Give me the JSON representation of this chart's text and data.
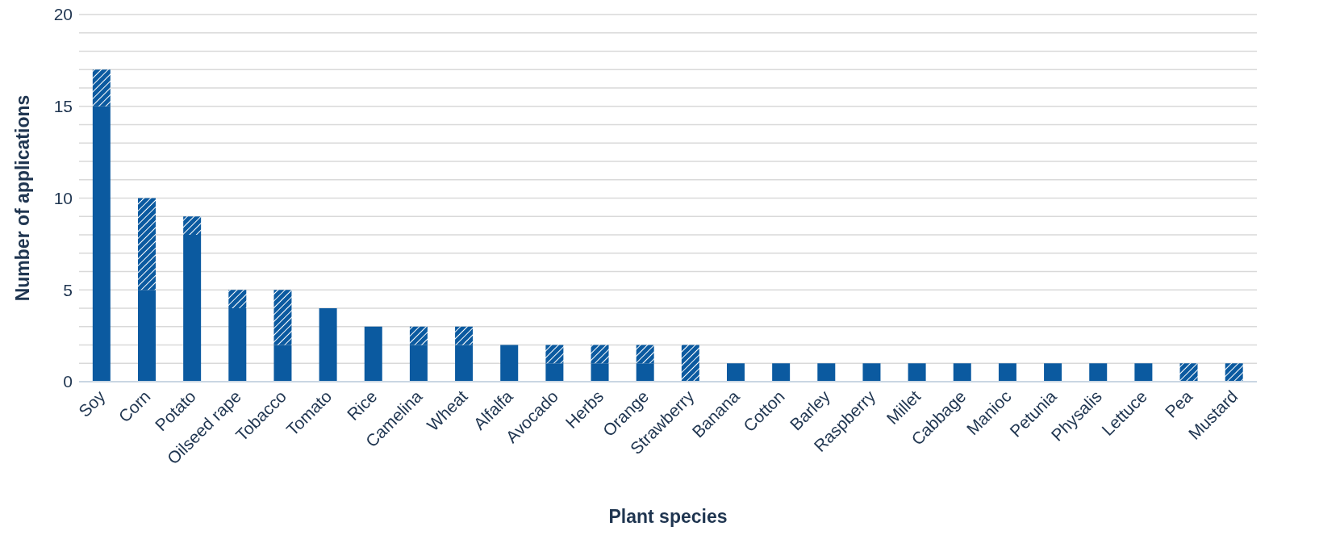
{
  "chart_data": {
    "type": "bar",
    "stacked": true,
    "xlabel": "Plant species",
    "ylabel": "Number of applications",
    "categories": [
      "Soy",
      "Corn",
      "Potato",
      "Oilseed rape",
      "Tobacco",
      "Tomato",
      "Rice",
      "Camelina",
      "Wheat",
      "Alfalfa",
      "Avocado",
      "Herbs",
      "Orange",
      "Strawberry",
      "Banana",
      "Cotton",
      "Barley",
      "Raspberry",
      "Millet",
      "Cabbage",
      "Manioc",
      "Petunia",
      "Physalis",
      "Lettuce",
      "Pea",
      "Mustard"
    ],
    "series": [
      {
        "color": "#0b5aa0",
        "values": [
          15,
          5,
          8,
          4,
          2,
          4,
          3,
          2,
          2,
          2,
          1,
          1,
          1,
          0,
          1,
          1,
          1,
          1,
          1,
          1,
          1,
          1,
          1,
          1,
          0,
          0
        ]
      },
      {
        "color": "#0b5aa0",
        "values": [
          2,
          5,
          1,
          1,
          3,
          0,
          0,
          1,
          1,
          0,
          1,
          1,
          1,
          2,
          0,
          0,
          0,
          0,
          0,
          0,
          0,
          0,
          0,
          0,
          1,
          1
        ]
      }
    ],
    "ylim": [
      0,
      20
    ],
    "yticks": [
      0,
      {
        "value": 1,
        "label": null
      },
      {
        "value": 2,
        "label": null
      },
      {
        "value": 3,
        "label": null
      },
      {
        "value": 4,
        "label": null
      },
      5,
      {
        "value": 6,
        "label": null
      },
      {
        "value": 7,
        "label": null
      },
      {
        "value": 8,
        "label": null
      },
      {
        "value": 9,
        "label": null
      },
      10,
      {
        "value": 11,
        "label": null
      },
      {
        "value": 12,
        "label": null
      },
      {
        "value": 13,
        "label": null
      },
      {
        "value": 14,
        "label": null
      },
      15,
      {
        "value": 16,
        "label": null
      },
      {
        "value": 17,
        "label": null
      },
      {
        "value": 18,
        "label": null
      },
      {
        "value": 19,
        "label": null
      },
      20
    ],
    "grid": "y",
    "legend": false
  }
}
